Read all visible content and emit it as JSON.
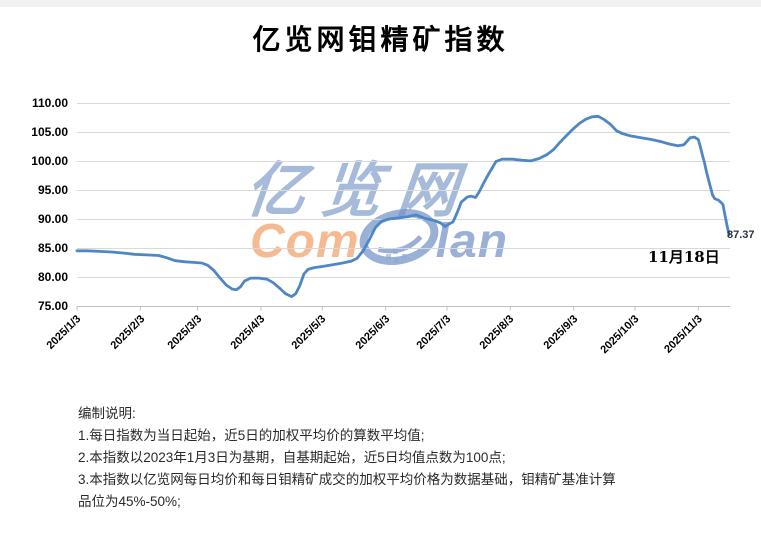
{
  "title": "亿览网钼精矿指数",
  "chart_data": {
    "type": "line",
    "title": "亿览网钼精矿指数",
    "xlabel": "",
    "ylabel": "",
    "ylim": [
      75,
      110
    ],
    "y_tick_step": 5,
    "grid": true,
    "legend": "none",
    "line_color": "#4e87c6",
    "gridline_color": "#d9d9d9",
    "axis_color": "#bfbfbf",
    "y_tick_labels": [
      "110.00",
      "105.00",
      "100.00",
      "95.00",
      "90.00",
      "85.00",
      "80.00",
      "75.00"
    ],
    "x_tick_labels": [
      "2025/1/3",
      "2025/2/3",
      "2025/3/3",
      "2025/4/3",
      "2025/5/3",
      "2025/6/3",
      "2025/7/3",
      "2025/8/3",
      "2025/9/3",
      "2025/10/3",
      "2025/11/3"
    ],
    "points": [
      [
        "1/3",
        84.6
      ],
      [
        "1/8",
        84.6
      ],
      [
        "1/14",
        84.5
      ],
      [
        "1/20",
        84.4
      ],
      [
        "1/26",
        84.2
      ],
      [
        "1/31",
        84.0
      ],
      [
        "2/6",
        83.9
      ],
      [
        "2/12",
        83.8
      ],
      [
        "2/16",
        83.4
      ],
      [
        "2/20",
        82.9
      ],
      [
        "2/25",
        82.7
      ],
      [
        "3/1",
        82.6
      ],
      [
        "3/5",
        82.5
      ],
      [
        "3/8",
        82.1
      ],
      [
        "3/11",
        81.2
      ],
      [
        "3/14",
        79.9
      ],
      [
        "3/17",
        78.7
      ],
      [
        "3/20",
        78.0
      ],
      [
        "3/22",
        77.9
      ],
      [
        "3/24",
        78.4
      ],
      [
        "3/26",
        79.4
      ],
      [
        "3/29",
        79.9
      ],
      [
        "4/2",
        79.9
      ],
      [
        "4/6",
        79.7
      ],
      [
        "4/9",
        79.1
      ],
      [
        "4/12",
        78.2
      ],
      [
        "4/15",
        77.2
      ],
      [
        "4/18",
        76.7
      ],
      [
        "4/20",
        77.2
      ],
      [
        "4/22",
        78.6
      ],
      [
        "4/24",
        80.6
      ],
      [
        "4/26",
        81.4
      ],
      [
        "4/29",
        81.7
      ],
      [
        "5/3",
        81.9
      ],
      [
        "5/8",
        82.2
      ],
      [
        "5/13",
        82.5
      ],
      [
        "5/17",
        82.8
      ],
      [
        "5/20",
        83.3
      ],
      [
        "5/23",
        84.6
      ],
      [
        "5/26",
        86.5
      ],
      [
        "5/29",
        88.6
      ],
      [
        "6/1",
        89.7
      ],
      [
        "6/5",
        90.1
      ],
      [
        "6/10",
        90.3
      ],
      [
        "6/14",
        90.5
      ],
      [
        "6/18",
        90.8
      ],
      [
        "6/22",
        90.2
      ],
      [
        "6/26",
        89.9
      ],
      [
        "6/30",
        89.4
      ],
      [
        "7/2",
        88.8
      ],
      [
        "7/4",
        89.2
      ],
      [
        "7/6",
        89.6
      ],
      [
        "7/8",
        91.2
      ],
      [
        "7/10",
        93.0
      ],
      [
        "7/13",
        93.9
      ],
      [
        "7/15",
        94.0
      ],
      [
        "7/17",
        93.8
      ],
      [
        "7/19",
        94.9
      ],
      [
        "7/21",
        96.3
      ],
      [
        "7/23",
        97.6
      ],
      [
        "7/25",
        98.8
      ],
      [
        "7/27",
        100.0
      ],
      [
        "7/30",
        100.4
      ],
      [
        "8/4",
        100.4
      ],
      [
        "8/9",
        100.2
      ],
      [
        "8/13",
        100.1
      ],
      [
        "8/17",
        100.5
      ],
      [
        "8/21",
        101.2
      ],
      [
        "8/24",
        102.0
      ],
      [
        "8/27",
        103.2
      ],
      [
        "8/30",
        104.3
      ],
      [
        "9/3",
        105.7
      ],
      [
        "9/6",
        106.6
      ],
      [
        "9/9",
        107.3
      ],
      [
        "9/12",
        107.7
      ],
      [
        "9/15",
        107.8
      ],
      [
        "9/18",
        107.2
      ],
      [
        "9/21",
        106.4
      ],
      [
        "9/24",
        105.3
      ],
      [
        "9/27",
        104.8
      ],
      [
        "10/1",
        104.4
      ],
      [
        "10/6",
        104.1
      ],
      [
        "10/11",
        103.8
      ],
      [
        "10/16",
        103.4
      ],
      [
        "10/20",
        103.0
      ],
      [
        "10/24",
        102.7
      ],
      [
        "10/27",
        102.9
      ],
      [
        "10/30",
        104.1
      ],
      [
        "11/1",
        104.2
      ],
      [
        "11/3",
        103.8
      ],
      [
        "11/4",
        102.5
      ],
      [
        "11/5",
        101.1
      ],
      [
        "11/6",
        99.8
      ],
      [
        "11/7",
        98.2
      ],
      [
        "11/8",
        96.8
      ],
      [
        "11/9",
        95.5
      ],
      [
        "11/10",
        94.2
      ],
      [
        "11/11",
        93.6
      ],
      [
        "11/13",
        93.3
      ],
      [
        "11/15",
        92.6
      ],
      [
        "11/16",
        90.8
      ],
      [
        "11/17",
        89.0
      ],
      [
        "11/18",
        87.37
      ]
    ],
    "end_label": "87.37",
    "annotation": "11月18日"
  },
  "watermark": {
    "cn": "亿览网",
    "en_prefix": "Com",
    "en_suffix": "lan",
    "orange": "#f4a673",
    "blue": "#7392c8"
  },
  "notes": {
    "heading": "编制说明:",
    "lines": [
      "1.每日指数为当日起始，近5日的加权平均价的算数平均值;",
      "2.本指数以2023年1月3日为基期，自基期起始，近5日均值点数为100点;",
      "3.本指数以亿览网每日均价和每日钼精矿成交的加权平均价格为数据基础，钼精矿基准计算",
      "品位为45%-50%;"
    ]
  }
}
